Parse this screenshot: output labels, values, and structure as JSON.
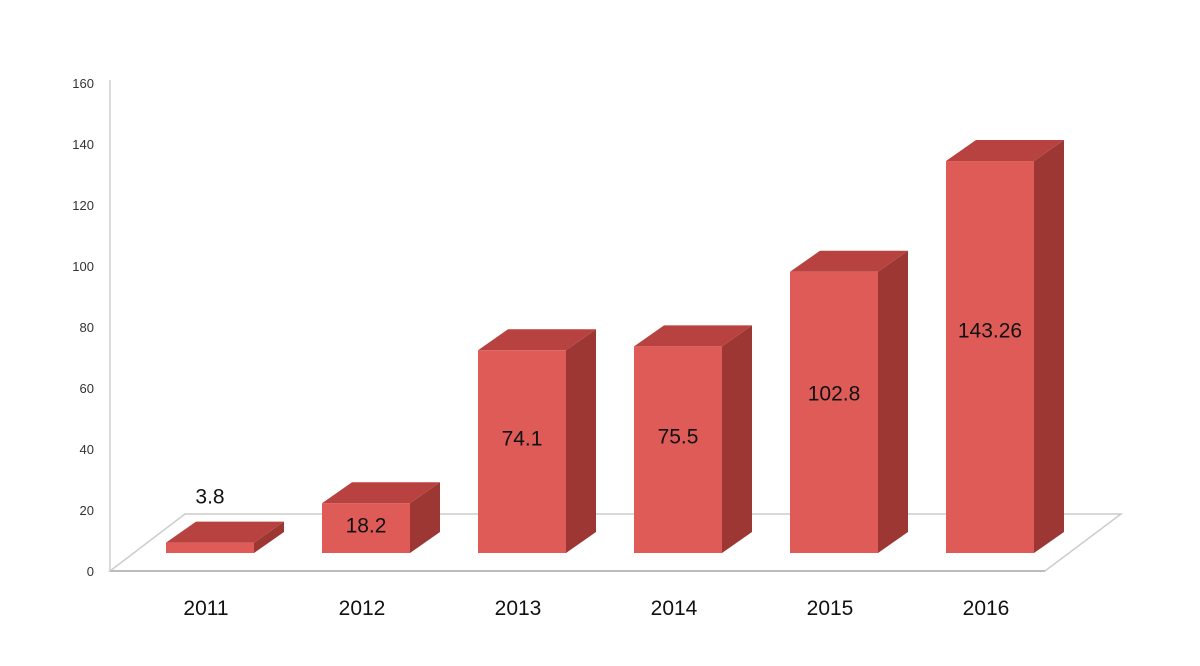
{
  "chart_data": {
    "type": "bar",
    "title": "",
    "xlabel": "",
    "ylabel": "",
    "categories": [
      "2011",
      "2012",
      "2013",
      "2014",
      "2015",
      "2016"
    ],
    "values": [
      3.8,
      18.2,
      74.1,
      75.5,
      102.8,
      143.26
    ],
    "data_labels": [
      "3.8",
      "18.2",
      "74.1",
      "75.5",
      "102.8",
      "143.26"
    ],
    "y_ticks": [
      "0",
      "20",
      "40",
      "60",
      "80",
      "100",
      "120",
      "140",
      "160"
    ],
    "ylim": [
      0,
      160
    ],
    "grid": false,
    "legend": "none",
    "style": "3d-column",
    "colors": {
      "bar_front": "#de5b58",
      "bar_top": "#b8423f",
      "bar_side": "#9c3734",
      "floor": "#ffffff",
      "floor_edge": "#cccccc",
      "axis": "#d0d0d0"
    }
  }
}
